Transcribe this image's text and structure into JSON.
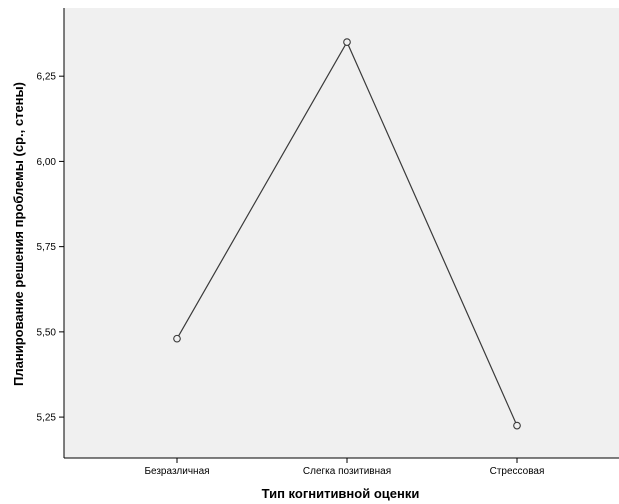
{
  "chart_data": {
    "type": "line",
    "categories": [
      "Безразличная",
      "Слегка позитивная",
      "Стрессовая"
    ],
    "series": [
      {
        "values": [
          5.48,
          6.35,
          5.225
        ]
      }
    ],
    "xlabel": "Тип когнитивной оценки",
    "ylabel": "Планирование решения проблемы (ср., стены)",
    "ylim": [
      5.13,
      6.45
    ],
    "yticks": [
      5.25,
      5.5,
      5.75,
      6.0,
      6.25
    ],
    "ytick_labels": [
      "5,25",
      "5,50",
      "5,75",
      "6,00",
      "6,25"
    ],
    "grid": false,
    "legend": "none",
    "colors": {
      "plot_background": "#f0f0f0",
      "line": "#3a3a3a",
      "axis": "#000000"
    }
  }
}
